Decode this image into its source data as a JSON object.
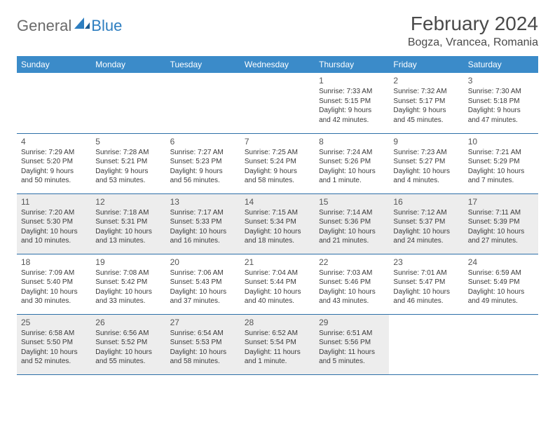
{
  "brand": {
    "part1": "General",
    "part2": "Blue"
  },
  "title": "February 2024",
  "location": "Bogza, Vrancea, Romania",
  "colors": {
    "header_bg": "#3b8bc9",
    "header_text": "#ffffff",
    "row_border": "#2d6fa8",
    "shaded_row": "#ededed",
    "text": "#3a3a3a",
    "brand_gray": "#6a6a6a",
    "brand_blue": "#2d7ec0"
  },
  "weekdays": [
    "Sunday",
    "Monday",
    "Tuesday",
    "Wednesday",
    "Thursday",
    "Friday",
    "Saturday"
  ],
  "weeks": [
    {
      "shaded": false,
      "days": [
        null,
        null,
        null,
        null,
        {
          "n": "1",
          "sr": "Sunrise: 7:33 AM",
          "ss": "Sunset: 5:15 PM",
          "d1": "Daylight: 9 hours",
          "d2": "and 42 minutes."
        },
        {
          "n": "2",
          "sr": "Sunrise: 7:32 AM",
          "ss": "Sunset: 5:17 PM",
          "d1": "Daylight: 9 hours",
          "d2": "and 45 minutes."
        },
        {
          "n": "3",
          "sr": "Sunrise: 7:30 AM",
          "ss": "Sunset: 5:18 PM",
          "d1": "Daylight: 9 hours",
          "d2": "and 47 minutes."
        }
      ]
    },
    {
      "shaded": false,
      "days": [
        {
          "n": "4",
          "sr": "Sunrise: 7:29 AM",
          "ss": "Sunset: 5:20 PM",
          "d1": "Daylight: 9 hours",
          "d2": "and 50 minutes."
        },
        {
          "n": "5",
          "sr": "Sunrise: 7:28 AM",
          "ss": "Sunset: 5:21 PM",
          "d1": "Daylight: 9 hours",
          "d2": "and 53 minutes."
        },
        {
          "n": "6",
          "sr": "Sunrise: 7:27 AM",
          "ss": "Sunset: 5:23 PM",
          "d1": "Daylight: 9 hours",
          "d2": "and 56 minutes."
        },
        {
          "n": "7",
          "sr": "Sunrise: 7:25 AM",
          "ss": "Sunset: 5:24 PM",
          "d1": "Daylight: 9 hours",
          "d2": "and 58 minutes."
        },
        {
          "n": "8",
          "sr": "Sunrise: 7:24 AM",
          "ss": "Sunset: 5:26 PM",
          "d1": "Daylight: 10 hours",
          "d2": "and 1 minute."
        },
        {
          "n": "9",
          "sr": "Sunrise: 7:23 AM",
          "ss": "Sunset: 5:27 PM",
          "d1": "Daylight: 10 hours",
          "d2": "and 4 minutes."
        },
        {
          "n": "10",
          "sr": "Sunrise: 7:21 AM",
          "ss": "Sunset: 5:29 PM",
          "d1": "Daylight: 10 hours",
          "d2": "and 7 minutes."
        }
      ]
    },
    {
      "shaded": true,
      "days": [
        {
          "n": "11",
          "sr": "Sunrise: 7:20 AM",
          "ss": "Sunset: 5:30 PM",
          "d1": "Daylight: 10 hours",
          "d2": "and 10 minutes."
        },
        {
          "n": "12",
          "sr": "Sunrise: 7:18 AM",
          "ss": "Sunset: 5:31 PM",
          "d1": "Daylight: 10 hours",
          "d2": "and 13 minutes."
        },
        {
          "n": "13",
          "sr": "Sunrise: 7:17 AM",
          "ss": "Sunset: 5:33 PM",
          "d1": "Daylight: 10 hours",
          "d2": "and 16 minutes."
        },
        {
          "n": "14",
          "sr": "Sunrise: 7:15 AM",
          "ss": "Sunset: 5:34 PM",
          "d1": "Daylight: 10 hours",
          "d2": "and 18 minutes."
        },
        {
          "n": "15",
          "sr": "Sunrise: 7:14 AM",
          "ss": "Sunset: 5:36 PM",
          "d1": "Daylight: 10 hours",
          "d2": "and 21 minutes."
        },
        {
          "n": "16",
          "sr": "Sunrise: 7:12 AM",
          "ss": "Sunset: 5:37 PM",
          "d1": "Daylight: 10 hours",
          "d2": "and 24 minutes."
        },
        {
          "n": "17",
          "sr": "Sunrise: 7:11 AM",
          "ss": "Sunset: 5:39 PM",
          "d1": "Daylight: 10 hours",
          "d2": "and 27 minutes."
        }
      ]
    },
    {
      "shaded": false,
      "days": [
        {
          "n": "18",
          "sr": "Sunrise: 7:09 AM",
          "ss": "Sunset: 5:40 PM",
          "d1": "Daylight: 10 hours",
          "d2": "and 30 minutes."
        },
        {
          "n": "19",
          "sr": "Sunrise: 7:08 AM",
          "ss": "Sunset: 5:42 PM",
          "d1": "Daylight: 10 hours",
          "d2": "and 33 minutes."
        },
        {
          "n": "20",
          "sr": "Sunrise: 7:06 AM",
          "ss": "Sunset: 5:43 PM",
          "d1": "Daylight: 10 hours",
          "d2": "and 37 minutes."
        },
        {
          "n": "21",
          "sr": "Sunrise: 7:04 AM",
          "ss": "Sunset: 5:44 PM",
          "d1": "Daylight: 10 hours",
          "d2": "and 40 minutes."
        },
        {
          "n": "22",
          "sr": "Sunrise: 7:03 AM",
          "ss": "Sunset: 5:46 PM",
          "d1": "Daylight: 10 hours",
          "d2": "and 43 minutes."
        },
        {
          "n": "23",
          "sr": "Sunrise: 7:01 AM",
          "ss": "Sunset: 5:47 PM",
          "d1": "Daylight: 10 hours",
          "d2": "and 46 minutes."
        },
        {
          "n": "24",
          "sr": "Sunrise: 6:59 AM",
          "ss": "Sunset: 5:49 PM",
          "d1": "Daylight: 10 hours",
          "d2": "and 49 minutes."
        }
      ]
    },
    {
      "shaded": true,
      "days": [
        {
          "n": "25",
          "sr": "Sunrise: 6:58 AM",
          "ss": "Sunset: 5:50 PM",
          "d1": "Daylight: 10 hours",
          "d2": "and 52 minutes."
        },
        {
          "n": "26",
          "sr": "Sunrise: 6:56 AM",
          "ss": "Sunset: 5:52 PM",
          "d1": "Daylight: 10 hours",
          "d2": "and 55 minutes."
        },
        {
          "n": "27",
          "sr": "Sunrise: 6:54 AM",
          "ss": "Sunset: 5:53 PM",
          "d1": "Daylight: 10 hours",
          "d2": "and 58 minutes."
        },
        {
          "n": "28",
          "sr": "Sunrise: 6:52 AM",
          "ss": "Sunset: 5:54 PM",
          "d1": "Daylight: 11 hours",
          "d2": "and 1 minute."
        },
        {
          "n": "29",
          "sr": "Sunrise: 6:51 AM",
          "ss": "Sunset: 5:56 PM",
          "d1": "Daylight: 11 hours",
          "d2": "and 5 minutes."
        },
        null,
        null
      ]
    }
  ]
}
